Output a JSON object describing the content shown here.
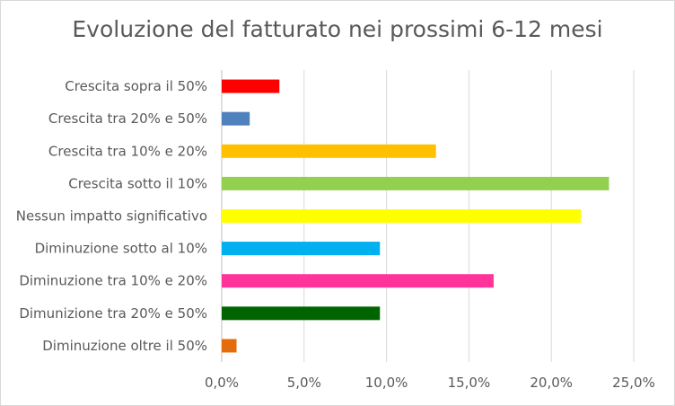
{
  "chart_data": {
    "type": "bar",
    "orientation": "horizontal",
    "title": "Evoluzione del fatturato nei prossimi 6-12 mesi",
    "xlabel": "",
    "ylabel": "",
    "xlim": [
      0,
      25
    ],
    "x_ticks": [
      "0,0%",
      "5,0%",
      "10,0%",
      "15,0%",
      "20,0%",
      "25,0%"
    ],
    "grid": true,
    "legend": "none",
    "categories": [
      "Crescita sopra il 50%",
      "Crescita tra 20% e 50%",
      "Crescita tra 10% e 20%",
      "Crescita sotto il 10%",
      "Nessun impatto significativo",
      "Diminuzione sotto al 10%",
      "Diminuzione tra 10% e 20%",
      "Dimunizione tra 20% e 50%",
      "Diminuzione oltre il 50%"
    ],
    "values": [
      3.5,
      1.7,
      13.0,
      23.5,
      21.8,
      9.6,
      16.5,
      9.6,
      0.9
    ],
    "colors": [
      "#ff0000",
      "#4f81bd",
      "#ffc000",
      "#92d050",
      "#ffff00",
      "#00b0f0",
      "#ff3399",
      "#006400",
      "#e46c0a"
    ]
  }
}
